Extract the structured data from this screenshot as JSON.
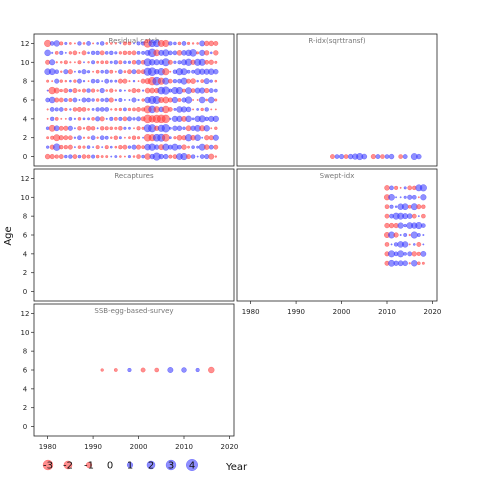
{
  "chart_data": {
    "type": "scatter",
    "subtype": "bubble-residuals",
    "ylabel": "Age",
    "xlabel": "Year",
    "colors": {
      "positive": "#3333ff",
      "negative": "#ff3333"
    },
    "x_ticks": [
      1980,
      1990,
      2000,
      2010,
      2020
    ],
    "y_ticks": [
      0,
      2,
      4,
      6,
      8,
      10,
      12
    ],
    "xlim": [
      1977,
      2021
    ],
    "ylim": [
      -1,
      13
    ],
    "legend": {
      "position": "bottom-left",
      "values": [
        "-3",
        "-2",
        "-1",
        "0",
        "1",
        "2",
        "3",
        "4"
      ]
    },
    "panels": [
      {
        "title": "Residual catch",
        "years_range": [
          1980,
          2017
        ],
        "ages": [
          0,
          1,
          2,
          3,
          4,
          5,
          6,
          7,
          8,
          9,
          10,
          11,
          12
        ],
        "pattern": "dense-all-years"
      },
      {
        "title": "R-idx(sqrttransf)",
        "points": [
          {
            "x": 1998,
            "y": 0,
            "v": -0.7
          },
          {
            "x": 1999,
            "y": 0,
            "v": 0.6
          },
          {
            "x": 2000,
            "y": 0,
            "v": 0.8
          },
          {
            "x": 2001,
            "y": 0,
            "v": -0.6
          },
          {
            "x": 2002,
            "y": 0,
            "v": 0.9
          },
          {
            "x": 2003,
            "y": 0,
            "v": 1.2
          },
          {
            "x": 2004,
            "y": 0,
            "v": 1.6
          },
          {
            "x": 2005,
            "y": 0,
            "v": 1.0
          },
          {
            "x": 2007,
            "y": 0,
            "v": -0.8
          },
          {
            "x": 2008,
            "y": 0,
            "v": 0.7
          },
          {
            "x": 2009,
            "y": 0,
            "v": -0.6
          },
          {
            "x": 2010,
            "y": 0,
            "v": 0.6
          },
          {
            "x": 2011,
            "y": 0,
            "v": 0.9
          },
          {
            "x": 2013,
            "y": 0,
            "v": -0.6
          },
          {
            "x": 2014,
            "y": 0,
            "v": 0.7
          },
          {
            "x": 2016,
            "y": 0,
            "v": 1.5
          },
          {
            "x": 2017,
            "y": 0,
            "v": 0.9
          }
        ]
      },
      {
        "title": "Recaptures",
        "points": []
      },
      {
        "title": "Swept-idx",
        "years_range": [
          2010,
          2018
        ],
        "ages": [
          3,
          4,
          5,
          6,
          7,
          8,
          9,
          10,
          11
        ],
        "pattern": "survey-block"
      },
      {
        "title": "SSB-egg-based-survey",
        "points": [
          {
            "x": 1992,
            "y": 6,
            "v": -0.3
          },
          {
            "x": 1995,
            "y": 6,
            "v": -0.4
          },
          {
            "x": 1998,
            "y": 6,
            "v": 0.5
          },
          {
            "x": 2001,
            "y": 6,
            "v": -0.7
          },
          {
            "x": 2004,
            "y": 6,
            "v": -0.6
          },
          {
            "x": 2007,
            "y": 6,
            "v": 1.1
          },
          {
            "x": 2010,
            "y": 6,
            "v": 0.9
          },
          {
            "x": 2013,
            "y": 6,
            "v": 0.5
          },
          {
            "x": 2016,
            "y": 6,
            "v": -1.3
          }
        ]
      }
    ]
  }
}
